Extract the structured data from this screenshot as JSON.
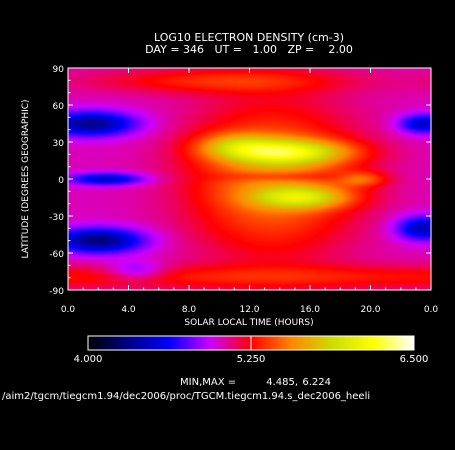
{
  "chart_data": {
    "type": "heatmap",
    "title": "LOG10 ELECTRON DENSITY (cm-3)",
    "subtitle": "DAY = 346   UT =   1.00   ZP =    2.00",
    "xlabel": "SOLAR LOCAL TIME (HOURS)",
    "ylabel": "LATITUDE (DEGREES GEOGRAPHIC)",
    "x_ticks": [
      "0.0",
      "4.0",
      "8.0",
      "12.0",
      "16.0",
      "20.0",
      "0.0"
    ],
    "y_ticks": [
      "90",
      "60",
      "30",
      "0",
      "-30",
      "-60",
      "-90"
    ],
    "xlim": [
      0,
      24
    ],
    "ylim": [
      -90,
      90
    ],
    "colorbar": {
      "min_label": "4.000",
      "mid_label": "5.250",
      "max_label": "6.500",
      "min": 4.0,
      "max": 6.5
    },
    "minmax_label": "MIN,MAX =",
    "min_value": "4.485,",
    "max_value": "6.224",
    "file_path": "/aim2/tgcm/tiegcm1.94/dec2006/proc/TGCM.tiegcm1.94.s_dec2006_heeli",
    "colormap": [
      "#000000",
      "#000088",
      "#0000ff",
      "#cc00ff",
      "#ff0000",
      "#ff8800",
      "#ccdd00",
      "#ffff00",
      "#ffffff"
    ]
  }
}
